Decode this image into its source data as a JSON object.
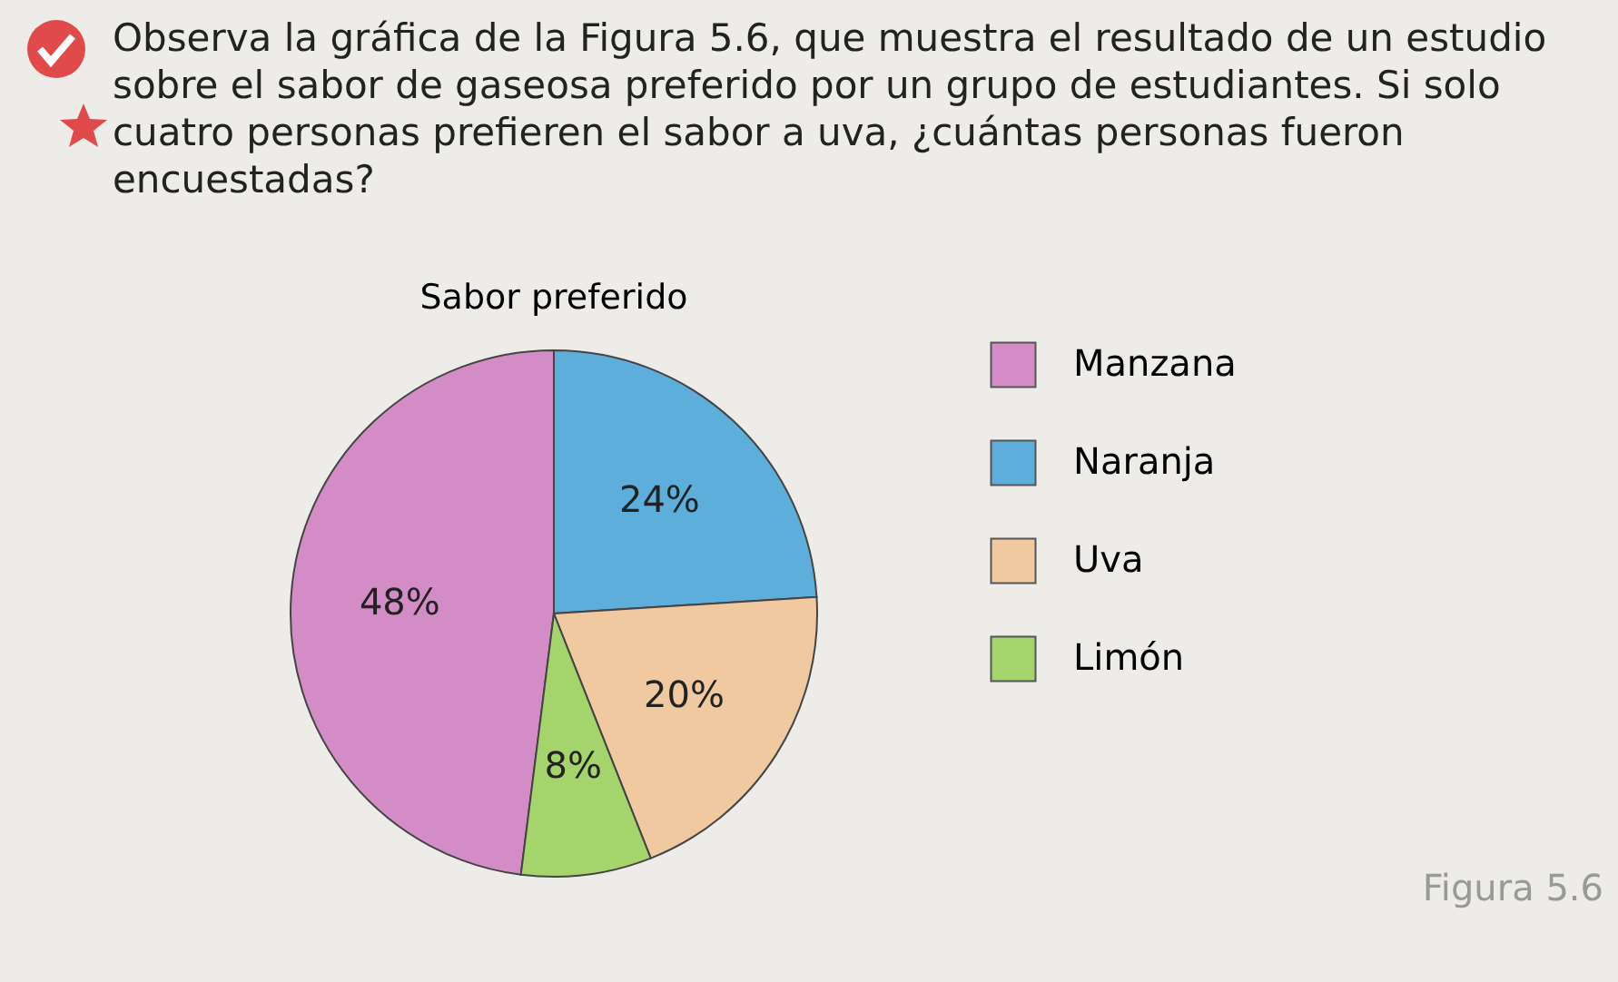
{
  "chart_data": {
    "type": "pie",
    "title": "Sabor preferido",
    "categories": [
      "Manzana",
      "Naranja",
      "Uva",
      "Limón"
    ],
    "values": [
      48,
      24,
      20,
      8
    ],
    "value_labels": [
      "48%",
      "24%",
      "20%",
      "8%"
    ],
    "colors": [
      "#d38cc6",
      "#5eaedc",
      "#f1c9a0",
      "#a6d46c"
    ],
    "legend": "right",
    "annotations": [
      "Observa la gráfica de la Figura 5.6, que muestra el resultado de un estudio sobre el sabor de gaseosa preferido por un grupo de estudiantes. Si solo cuatro personas prefieren el sabor a uva, ¿cuántas personas fueron encuestadas?",
      "Figura 5.6"
    ]
  }
}
